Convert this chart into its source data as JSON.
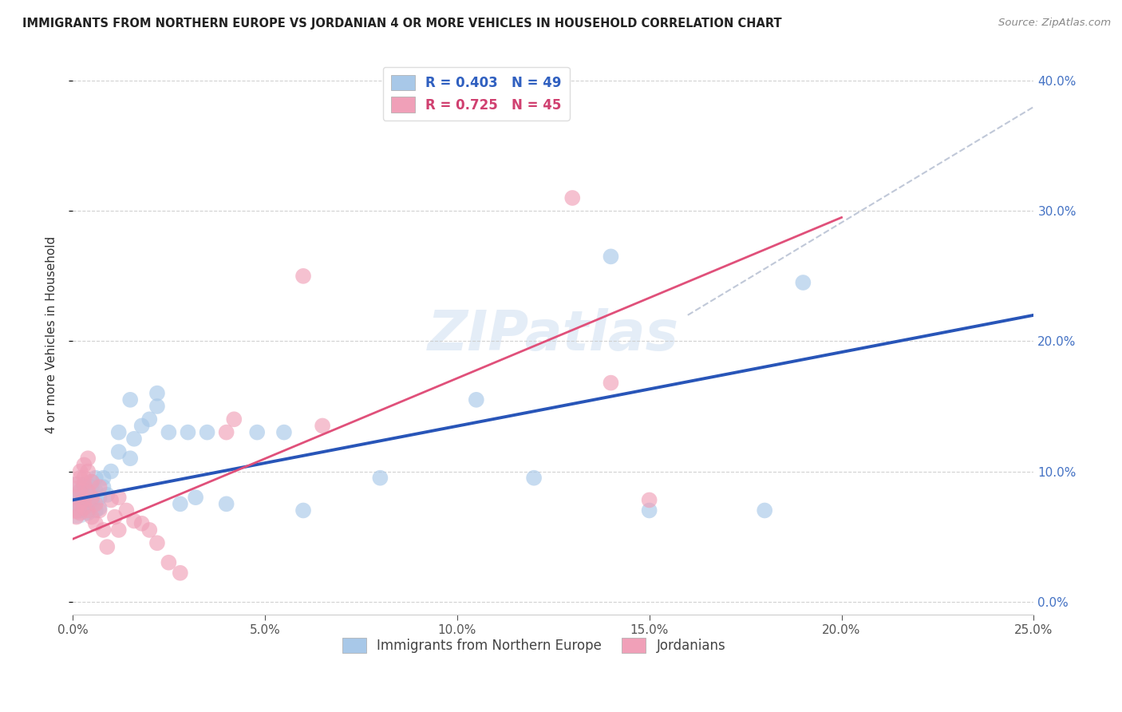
{
  "title": "IMMIGRANTS FROM NORTHERN EUROPE VS JORDANIAN 4 OR MORE VEHICLES IN HOUSEHOLD CORRELATION CHART",
  "source": "Source: ZipAtlas.com",
  "ylabel": "4 or more Vehicles in Household",
  "legend_bottom": [
    "Immigrants from Northern Europe",
    "Jordanians"
  ],
  "blue_color": "#a8c8e8",
  "pink_color": "#f0a0b8",
  "blue_line_color": "#2855b8",
  "pink_line_color": "#e0507a",
  "dashed_line_color": "#c0c8d8",
  "watermark": "ZIPatlas",
  "xlim": [
    0.0,
    0.25
  ],
  "ylim": [
    -0.01,
    0.42
  ],
  "blue_scatter": [
    [
      0.001,
      0.075
    ],
    [
      0.001,
      0.08
    ],
    [
      0.002,
      0.07
    ],
    [
      0.002,
      0.078
    ],
    [
      0.002,
      0.085
    ],
    [
      0.003,
      0.072
    ],
    [
      0.003,
      0.08
    ],
    [
      0.003,
      0.09
    ],
    [
      0.004,
      0.068
    ],
    [
      0.004,
      0.075
    ],
    [
      0.004,
      0.082
    ],
    [
      0.005,
      0.078
    ],
    [
      0.005,
      0.088
    ],
    [
      0.005,
      0.092
    ],
    [
      0.006,
      0.07
    ],
    [
      0.006,
      0.085
    ],
    [
      0.006,
      0.095
    ],
    [
      0.007,
      0.072
    ],
    [
      0.007,
      0.08
    ],
    [
      0.008,
      0.088
    ],
    [
      0.008,
      0.095
    ],
    [
      0.009,
      0.082
    ],
    [
      0.01,
      0.1
    ],
    [
      0.012,
      0.115
    ],
    [
      0.012,
      0.13
    ],
    [
      0.015,
      0.11
    ],
    [
      0.015,
      0.155
    ],
    [
      0.016,
      0.125
    ],
    [
      0.018,
      0.135
    ],
    [
      0.02,
      0.14
    ],
    [
      0.022,
      0.15
    ],
    [
      0.022,
      0.16
    ],
    [
      0.025,
      0.13
    ],
    [
      0.028,
      0.075
    ],
    [
      0.03,
      0.13
    ],
    [
      0.032,
      0.08
    ],
    [
      0.035,
      0.13
    ],
    [
      0.04,
      0.075
    ],
    [
      0.048,
      0.13
    ],
    [
      0.055,
      0.13
    ],
    [
      0.06,
      0.07
    ],
    [
      0.08,
      0.095
    ],
    [
      0.105,
      0.155
    ],
    [
      0.115,
      0.38
    ],
    [
      0.12,
      0.095
    ],
    [
      0.14,
      0.265
    ],
    [
      0.15,
      0.07
    ],
    [
      0.18,
      0.07
    ],
    [
      0.19,
      0.245
    ]
  ],
  "pink_scatter": [
    [
      0.001,
      0.065
    ],
    [
      0.001,
      0.07
    ],
    [
      0.001,
      0.08
    ],
    [
      0.001,
      0.09
    ],
    [
      0.002,
      0.068
    ],
    [
      0.002,
      0.075
    ],
    [
      0.002,
      0.085
    ],
    [
      0.002,
      0.095
    ],
    [
      0.002,
      0.1
    ],
    [
      0.003,
      0.072
    ],
    [
      0.003,
      0.078
    ],
    [
      0.003,
      0.09
    ],
    [
      0.003,
      0.095
    ],
    [
      0.003,
      0.105
    ],
    [
      0.004,
      0.07
    ],
    [
      0.004,
      0.085
    ],
    [
      0.004,
      0.1
    ],
    [
      0.004,
      0.11
    ],
    [
      0.005,
      0.065
    ],
    [
      0.005,
      0.08
    ],
    [
      0.005,
      0.092
    ],
    [
      0.006,
      0.06
    ],
    [
      0.006,
      0.075
    ],
    [
      0.007,
      0.07
    ],
    [
      0.007,
      0.088
    ],
    [
      0.008,
      0.055
    ],
    [
      0.009,
      0.042
    ],
    [
      0.01,
      0.078
    ],
    [
      0.011,
      0.065
    ],
    [
      0.012,
      0.055
    ],
    [
      0.012,
      0.08
    ],
    [
      0.014,
      0.07
    ],
    [
      0.016,
      0.062
    ],
    [
      0.018,
      0.06
    ],
    [
      0.02,
      0.055
    ],
    [
      0.022,
      0.045
    ],
    [
      0.025,
      0.03
    ],
    [
      0.028,
      0.022
    ],
    [
      0.04,
      0.13
    ],
    [
      0.042,
      0.14
    ],
    [
      0.06,
      0.25
    ],
    [
      0.065,
      0.135
    ],
    [
      0.13,
      0.31
    ],
    [
      0.14,
      0.168
    ],
    [
      0.15,
      0.078
    ]
  ],
  "blue_line": [
    [
      0.0,
      0.078
    ],
    [
      0.25,
      0.22
    ]
  ],
  "pink_line": [
    [
      0.0,
      0.048
    ],
    [
      0.2,
      0.295
    ]
  ],
  "dash_line": [
    [
      0.16,
      0.22
    ],
    [
      0.25,
      0.38
    ]
  ]
}
